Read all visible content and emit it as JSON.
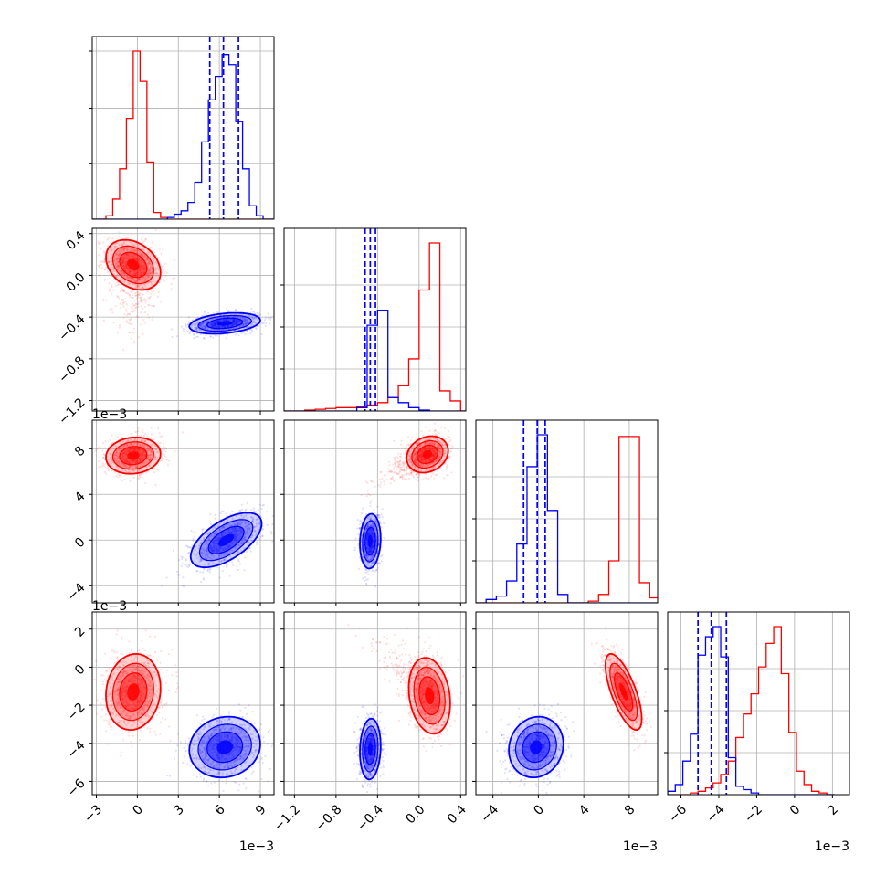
{
  "chart_data": {
    "type": "corner",
    "grid": true,
    "series": [
      {
        "name": "",
        "color": "#ff0000"
      },
      {
        "name": "",
        "color": "#0000ff"
      }
    ],
    "parameters": [
      {
        "index": 0,
        "range": [
          -3.3,
          10.0
        ],
        "ticks": [
          -3,
          0,
          3,
          6,
          9
        ],
        "tick_labels": [
          "−3",
          "0",
          "3",
          "6",
          "9"
        ],
        "offset": "1e−3",
        "tick_scale": 0.001
      },
      {
        "index": 1,
        "range": [
          -1.3,
          0.45
        ],
        "ticks": [
          -1.2,
          -0.8,
          -0.4,
          0.0,
          0.4
        ],
        "tick_labels": [
          "−1.2",
          "−0.8",
          "−0.4",
          "0.0",
          "0.4"
        ],
        "offset": "",
        "tick_scale": 1
      },
      {
        "index": 2,
        "range": [
          -5.5,
          10.5
        ],
        "ticks": [
          -4,
          0,
          4,
          8
        ],
        "tick_labels": [
          "−4",
          "0",
          "4",
          "8"
        ],
        "offset": "1e−3",
        "tick_scale": 0.001
      },
      {
        "index": 3,
        "range": [
          -6.7,
          2.9
        ],
        "ticks": [
          -6,
          -4,
          -2,
          0,
          2
        ],
        "tick_labels": [
          "−6",
          "−4",
          "−2",
          "0",
          "2"
        ],
        "offset": "1e−3",
        "tick_scale": 0.001
      }
    ],
    "x_offset_labels": {
      "0": "1e−3",
      "2": "1e−3",
      "3": "1e−3"
    },
    "y_offset_labels": {
      "2": "1e−3",
      "3": "1e−3"
    },
    "histograms": [
      {
        "parameter": 0,
        "bin_edges": [
          -3.3,
          -2.8,
          -2.3,
          -1.8,
          -1.3,
          -0.8,
          -0.3,
          0.2,
          0.7,
          1.2,
          1.7,
          2.2,
          2.7,
          3.2,
          3.7,
          4.2,
          4.7,
          5.2,
          5.7,
          6.2,
          6.7,
          7.2,
          7.7,
          8.2,
          8.7,
          9.2,
          9.7,
          10.2
        ],
        "red": [
          0,
          0,
          0.02,
          0.12,
          0.3,
          0.6,
          1.0,
          0.82,
          0.34,
          0.04,
          0.01,
          0,
          0,
          0,
          0,
          0,
          0,
          0,
          0,
          0,
          0,
          0,
          0,
          0,
          0,
          0,
          0
        ],
        "blue": [
          0,
          0,
          0,
          0,
          0,
          0,
          0,
          0,
          0,
          0,
          0,
          0.01,
          0.03,
          0.05,
          0.1,
          0.22,
          0.46,
          0.71,
          0.85,
          0.98,
          0.92,
          0.58,
          0.3,
          0.08,
          0.02,
          0,
          0
        ],
        "blue_quantiles": [
          5.3,
          6.3,
          7.4
        ],
        "y_ticks": [
          0.33,
          0.66,
          1.0
        ]
      },
      {
        "parameter": 1,
        "bin_edges": [
          -1.3,
          -1.2,
          -1.1,
          -1.0,
          -0.9,
          -0.8,
          -0.7,
          -0.6,
          -0.5,
          -0.4,
          -0.3,
          -0.2,
          -0.1,
          0.0,
          0.1,
          0.2,
          0.3,
          0.4,
          0.5
        ],
        "red": [
          0,
          0,
          0.005,
          0.01,
          0.015,
          0.02,
          0.02,
          0.025,
          0.035,
          0.05,
          0.08,
          0.15,
          0.31,
          0.72,
          1.0,
          0.12,
          0.06,
          0
        ],
        "blue": [
          0,
          0,
          0,
          0,
          0,
          0,
          0,
          0.02,
          0.51,
          0.6,
          0.08,
          0.05,
          0.02,
          0.005,
          0,
          0,
          0,
          0
        ],
        "blue_quantiles": [
          -0.52,
          -0.47,
          -0.42
        ],
        "y_ticks": [
          0.25,
          0.5,
          0.75
        ]
      },
      {
        "parameter": 2,
        "bin_edges": [
          -5.5,
          -4.6,
          -3.7,
          -2.8,
          -1.9,
          -1.0,
          -0.1,
          0.8,
          1.7,
          2.6,
          3.5,
          4.4,
          5.3,
          6.2,
          7.1,
          8.0,
          8.9,
          9.8,
          10.7
        ],
        "red": [
          0,
          0,
          0,
          0,
          0,
          0,
          0,
          0,
          0,
          0,
          0,
          0.01,
          0.05,
          0.25,
          0.99,
          0.99,
          0.12,
          0.03
        ],
        "blue": [
          0,
          0.02,
          0.04,
          0.13,
          0.35,
          0.81,
          1.0,
          0.55,
          0.05,
          0,
          0,
          0,
          0,
          0,
          0,
          0,
          0,
          0
        ],
        "blue_quantiles": [
          -1.3,
          -0.1,
          0.6
        ],
        "y_ticks": [
          0.25,
          0.5,
          0.75
        ]
      },
      {
        "parameter": 3,
        "bin_edges": [
          -6.7,
          -6.3,
          -5.9,
          -5.5,
          -5.1,
          -4.7,
          -4.3,
          -3.9,
          -3.5,
          -3.1,
          -2.7,
          -2.3,
          -1.9,
          -1.5,
          -1.1,
          -0.7,
          -0.3,
          0.1,
          0.5,
          0.9,
          1.3,
          1.7,
          2.1
        ],
        "red": [
          0,
          0,
          0,
          0.01,
          0.02,
          0.04,
          0.07,
          0.12,
          0.2,
          0.34,
          0.48,
          0.6,
          0.76,
          0.9,
          1.0,
          0.72,
          0.37,
          0.14,
          0.06,
          0.02,
          0.01,
          0
        ],
        "blue": [
          0.02,
          0.06,
          0.2,
          0.36,
          0.83,
          0.94,
          1.0,
          0.82,
          0.22,
          0.05,
          0.03,
          0.01,
          0,
          0,
          0,
          0,
          0,
          0,
          0,
          0,
          0,
          0
        ],
        "blue_quantiles": [
          -5.1,
          -4.4,
          -3.6
        ],
        "y_ticks": [
          0.25,
          0.5,
          0.75
        ]
      }
    ],
    "pairs": [
      {
        "x": 0,
        "y": 1,
        "red": {
          "mean": [
            -0.3,
            0.1
          ],
          "sd": [
            1.0,
            0.12
          ],
          "rho": -0.3,
          "tail": {
            "dir": [
              0,
              -1
            ],
            "spread": 0.9
          }
        },
        "blue": {
          "mean": [
            6.4,
            -0.46
          ],
          "sd": [
            1.3,
            0.05
          ],
          "rho": 0.3
        }
      },
      {
        "x": 0,
        "y": 2,
        "red": {
          "mean": [
            -0.3,
            7.4
          ],
          "sd": [
            1.0,
            0.8
          ],
          "rho": 0.1
        },
        "blue": {
          "mean": [
            6.5,
            0.0
          ],
          "sd": [
            1.3,
            1.2
          ],
          "rho": 0.6
        }
      },
      {
        "x": 1,
        "y": 2,
        "red": {
          "mean": [
            0.08,
            7.5
          ],
          "sd": [
            0.1,
            0.8
          ],
          "rho": 0.2,
          "tail": {
            "dir": [
              -1,
              -0.6
            ],
            "spread": 0.6
          }
        },
        "blue": {
          "mean": [
            -0.47,
            -0.1
          ],
          "sd": [
            0.05,
            1.2
          ],
          "rho": 0.1
        }
      },
      {
        "x": 0,
        "y": 3,
        "red": {
          "mean": [
            -0.3,
            -1.3
          ],
          "sd": [
            1.0,
            1.0
          ],
          "rho": 0.1
        },
        "blue": {
          "mean": [
            6.4,
            -4.2
          ],
          "sd": [
            1.3,
            0.8
          ],
          "rho": 0.1
        }
      },
      {
        "x": 1,
        "y": 3,
        "red": {
          "mean": [
            0.1,
            -1.5
          ],
          "sd": [
            0.1,
            1.0
          ],
          "rho": -0.2,
          "tail": {
            "dir": [
              -1,
              0.5
            ],
            "spread": 0.6
          }
        },
        "blue": {
          "mean": [
            -0.47,
            -4.3
          ],
          "sd": [
            0.05,
            0.8
          ],
          "rho": 0.1
        }
      },
      {
        "x": 2,
        "y": 3,
        "red": {
          "mean": [
            7.5,
            -1.3
          ],
          "sd": [
            0.8,
            1.0
          ],
          "rho": -0.7
        },
        "blue": {
          "mean": [
            -0.2,
            -4.2
          ],
          "sd": [
            1.2,
            0.8
          ],
          "rho": 0.1
        }
      }
    ]
  }
}
